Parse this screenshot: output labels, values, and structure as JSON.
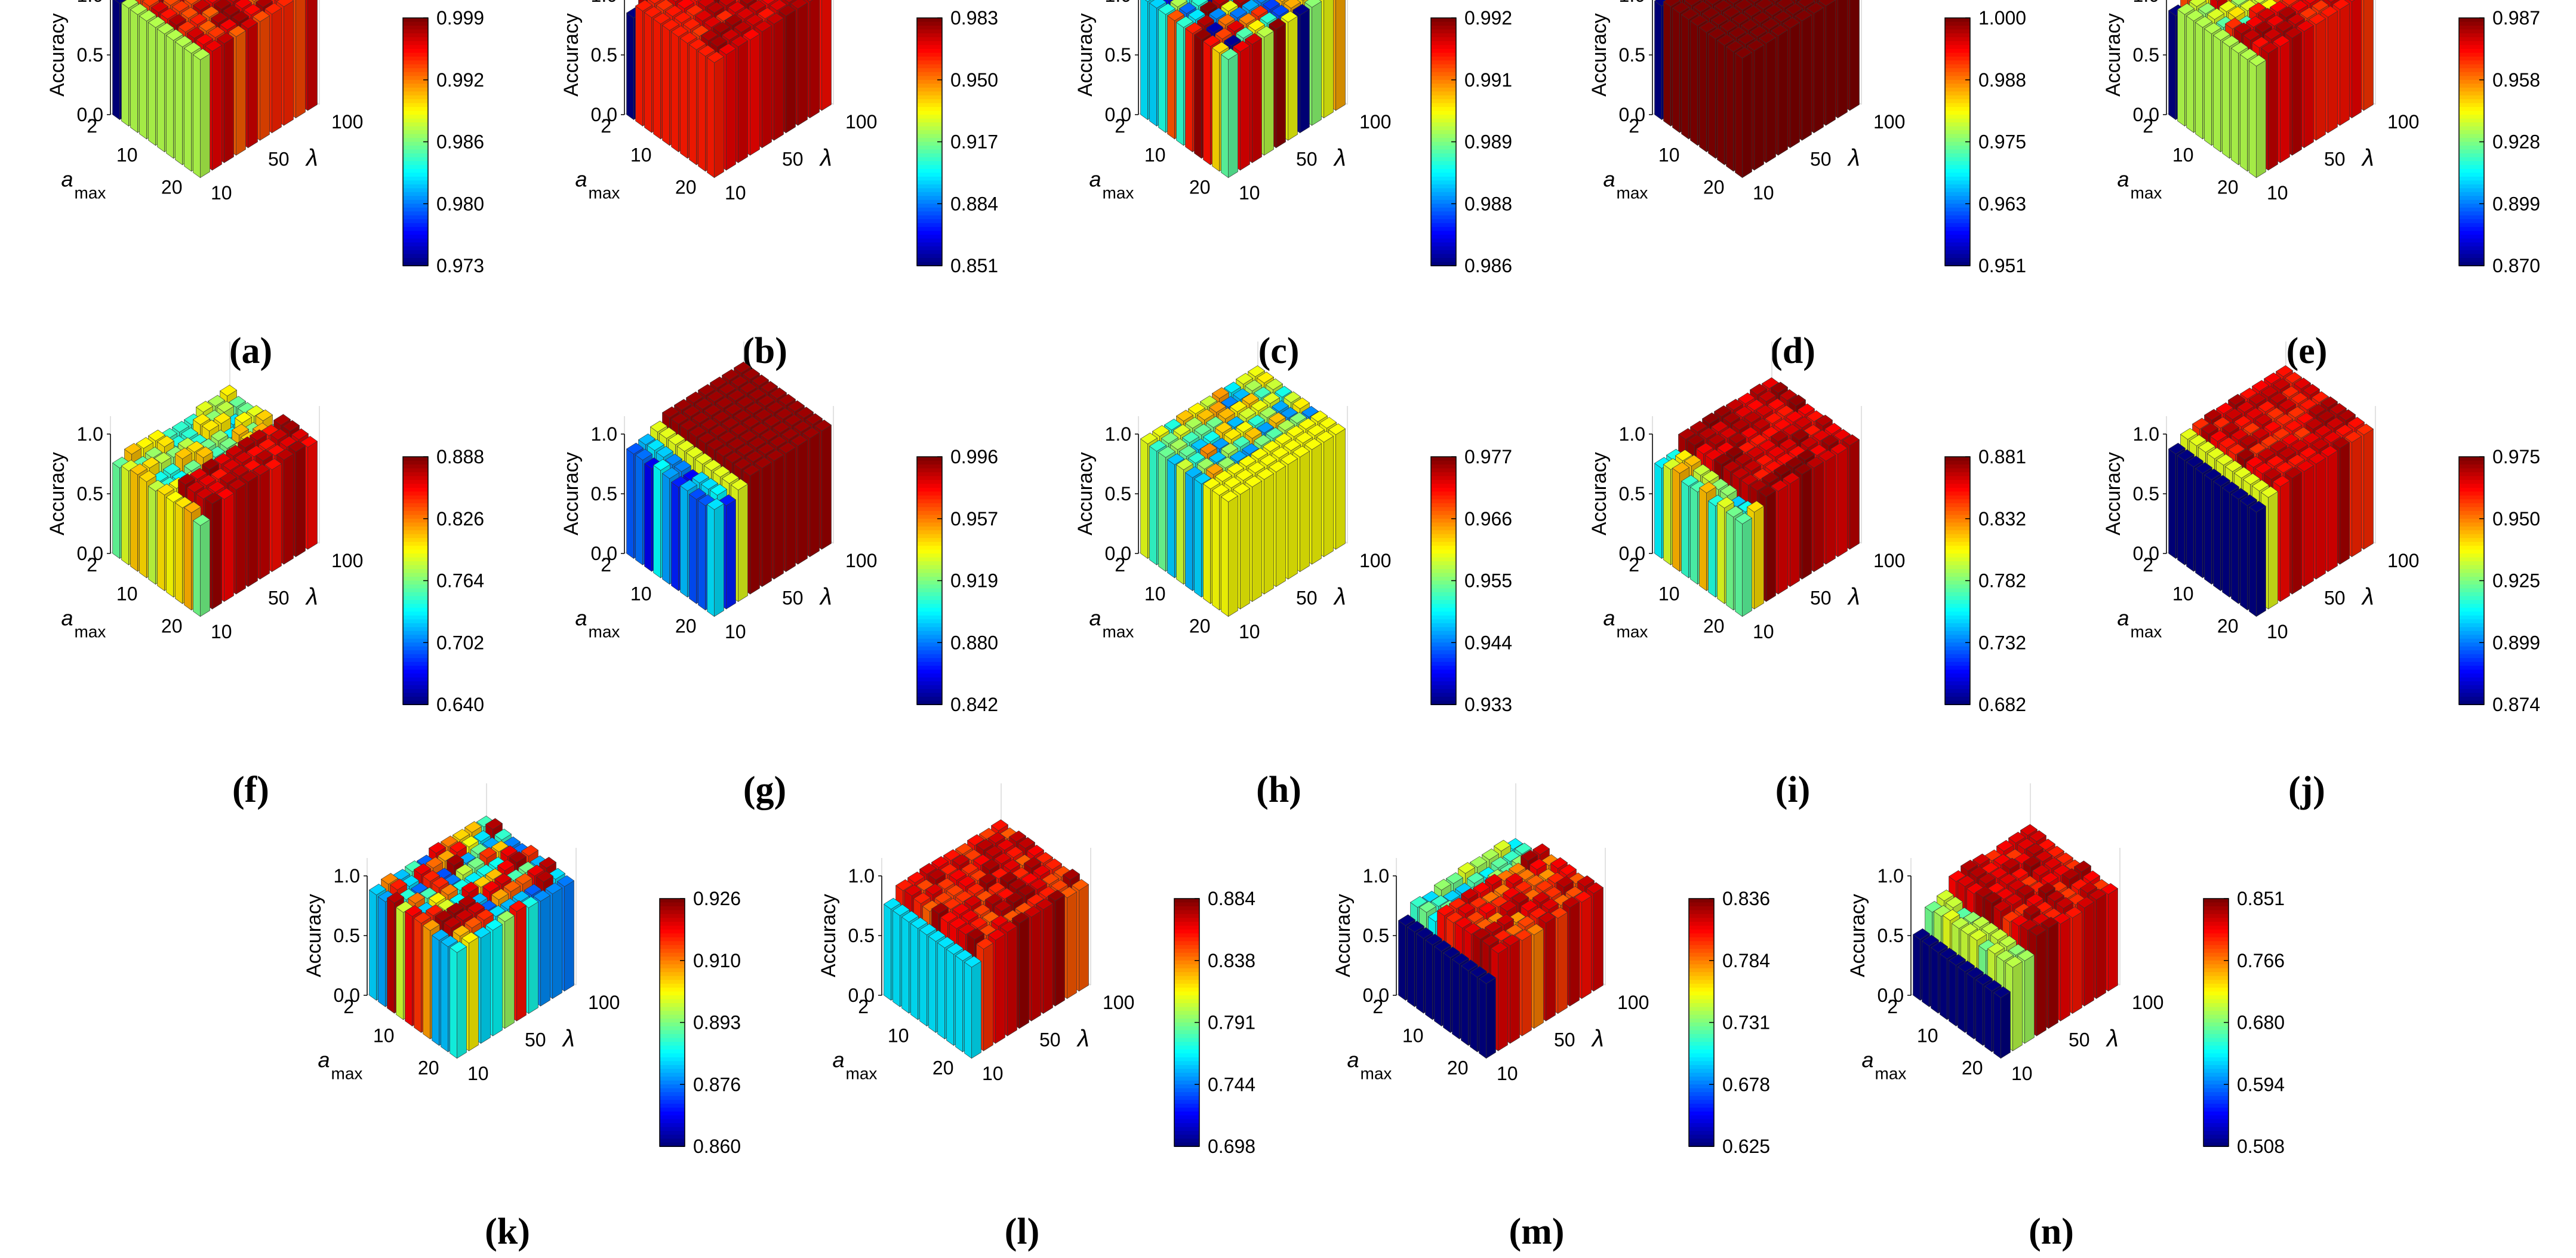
{
  "figure": {
    "zlabel": "Accuracy",
    "xlabel": "a",
    "xlabel_subscript": "max",
    "ylabel": "λ",
    "z_ticks": [
      "0.0",
      "0.5",
      "1.0"
    ],
    "x_ticks": [
      "2",
      "10",
      "20"
    ],
    "y_ticks": [
      "10",
      "50",
      "100"
    ]
  },
  "chart_data": [
    {
      "id": "a",
      "caption": "(a)",
      "type": "bar3d",
      "zlim": [
        0,
        1
      ],
      "colorbar": {
        "ticks": [
          "0.999",
          "0.992",
          "0.986",
          "0.980",
          "0.973"
        ],
        "range": [
          0.973,
          0.999
        ]
      },
      "note": "10x10 grid of accuracy bars over a_max (2–20) and λ (10–100); exact values approximate"
    },
    {
      "id": "b",
      "caption": "(b)",
      "type": "bar3d",
      "zlim": [
        0,
        1
      ],
      "colorbar": {
        "ticks": [
          "0.983",
          "0.950",
          "0.917",
          "0.884",
          "0.851"
        ],
        "range": [
          0.851,
          0.983
        ]
      }
    },
    {
      "id": "c",
      "caption": "(c)",
      "type": "bar3d",
      "zlim": [
        0,
        1
      ],
      "colorbar": {
        "ticks": [
          "0.992",
          "0.991",
          "0.989",
          "0.988",
          "0.986"
        ],
        "range": [
          0.986,
          0.992
        ]
      }
    },
    {
      "id": "d",
      "caption": "(d)",
      "type": "bar3d",
      "zlim": [
        0,
        1
      ],
      "colorbar": {
        "ticks": [
          "1.000",
          "0.988",
          "0.975",
          "0.963",
          "0.951"
        ],
        "range": [
          0.951,
          1.0
        ]
      }
    },
    {
      "id": "e",
      "caption": "(e)",
      "type": "bar3d",
      "zlim": [
        0,
        1
      ],
      "colorbar": {
        "ticks": [
          "0.987",
          "0.958",
          "0.928",
          "0.899",
          "0.870"
        ],
        "range": [
          0.87,
          0.987
        ]
      }
    },
    {
      "id": "f",
      "caption": "(f)",
      "type": "bar3d",
      "zlim": [
        0,
        1
      ],
      "colorbar": {
        "ticks": [
          "0.888",
          "0.826",
          "0.764",
          "0.702",
          "0.640"
        ],
        "range": [
          0.64,
          0.888
        ]
      }
    },
    {
      "id": "g",
      "caption": "(g)",
      "type": "bar3d",
      "zlim": [
        0,
        1
      ],
      "colorbar": {
        "ticks": [
          "0.996",
          "0.957",
          "0.919",
          "0.880",
          "0.842"
        ],
        "range": [
          0.842,
          0.996
        ]
      }
    },
    {
      "id": "h",
      "caption": "(h)",
      "type": "bar3d",
      "zlim": [
        0,
        1
      ],
      "colorbar": {
        "ticks": [
          "0.977",
          "0.966",
          "0.955",
          "0.944",
          "0.933"
        ],
        "range": [
          0.933,
          0.977
        ]
      }
    },
    {
      "id": "i",
      "caption": "(i)",
      "type": "bar3d",
      "zlim": [
        0,
        1
      ],
      "colorbar": {
        "ticks": [
          "0.881",
          "0.832",
          "0.782",
          "0.732",
          "0.682"
        ],
        "range": [
          0.682,
          0.881
        ]
      }
    },
    {
      "id": "j",
      "caption": "(j)",
      "type": "bar3d",
      "zlim": [
        0,
        1
      ],
      "colorbar": {
        "ticks": [
          "0.975",
          "0.950",
          "0.925",
          "0.899",
          "0.874"
        ],
        "range": [
          0.874,
          0.975
        ]
      }
    },
    {
      "id": "k",
      "caption": "(k)",
      "type": "bar3d",
      "zlim": [
        0,
        1
      ],
      "colorbar": {
        "ticks": [
          "0.926",
          "0.910",
          "0.893",
          "0.876",
          "0.860"
        ],
        "range": [
          0.86,
          0.926
        ]
      }
    },
    {
      "id": "l",
      "caption": "(l)",
      "type": "bar3d",
      "zlim": [
        0,
        1
      ],
      "colorbar": {
        "ticks": [
          "0.884",
          "0.838",
          "0.791",
          "0.744",
          "0.698"
        ],
        "range": [
          0.698,
          0.884
        ]
      }
    },
    {
      "id": "m",
      "caption": "(m)",
      "type": "bar3d",
      "zlim": [
        0,
        1
      ],
      "colorbar": {
        "ticks": [
          "0.836",
          "0.784",
          "0.731",
          "0.678",
          "0.625"
        ],
        "range": [
          0.625,
          0.836
        ]
      }
    },
    {
      "id": "n",
      "caption": "(n)",
      "type": "bar3d",
      "zlim": [
        0,
        1
      ],
      "colorbar": {
        "ticks": [
          "0.851",
          "0.766",
          "0.680",
          "0.594",
          "0.508"
        ],
        "range": [
          0.508,
          0.851
        ]
      }
    }
  ]
}
